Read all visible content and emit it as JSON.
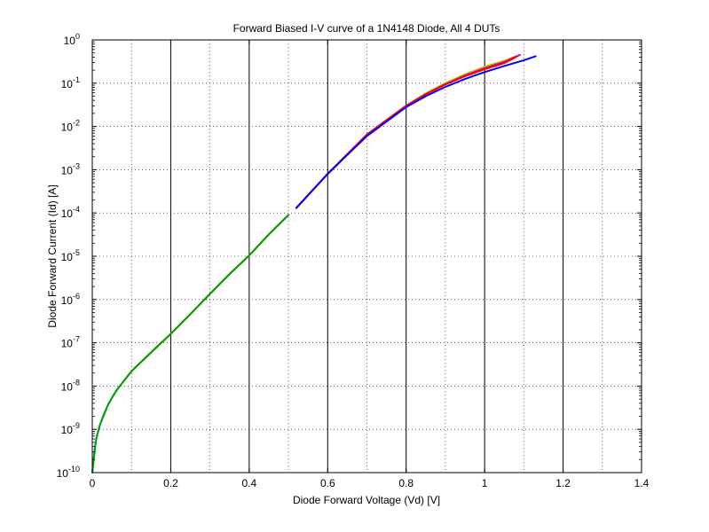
{
  "chart_data": {
    "type": "line",
    "title": "Forward Biased I-V curve of a 1N4148 Diode, All 4 DUTs",
    "xlabel": "Diode Forward Voltage (Vd) [V]",
    "ylabel": "Diode Forward Current (Id) [A]",
    "xlim": [
      0,
      1.4
    ],
    "ylim": [
      1e-10,
      1
    ],
    "y_scale": "log",
    "grid": "dotted",
    "x_ticks": [
      "0",
      "0.2",
      "0.4",
      "0.6",
      "0.8",
      "1",
      "1.2",
      "1.4"
    ],
    "x_tick_values": [
      0,
      0.2,
      0.4,
      0.6,
      0.8,
      1.0,
      1.2,
      1.4
    ],
    "y_tick_exponents": [
      -10,
      -9,
      -8,
      -7,
      -6,
      -5,
      -4,
      -3,
      -2,
      -1,
      0
    ],
    "y_tick_base": "10",
    "x_bold_gridlines": [
      0.2,
      0.4,
      0.6,
      0.8,
      1.0,
      1.2
    ],
    "series": [
      {
        "color": "#00bfbf",
        "x": [
          0.0,
          0.005,
          0.01,
          0.015,
          0.02,
          0.03,
          0.04,
          0.05,
          0.06,
          0.07,
          0.08,
          0.1,
          0.15,
          0.2,
          0.25,
          0.3,
          0.35,
          0.4,
          0.45,
          0.5
        ],
        "y": [
          1e-10,
          3e-10,
          6e-10,
          9e-10,
          1.3e-09,
          2.3e-09,
          3.7e-09,
          5.4e-09,
          7.5e-09,
          1e-08,
          1.3e-08,
          2.2e-08,
          6e-08,
          1.6e-07,
          4.6e-07,
          1.35e-06,
          3.9e-06,
          1.05e-05,
          3.2e-05,
          9e-05
        ]
      },
      {
        "color": "#ff0000",
        "x": [
          0.08,
          0.1,
          0.15,
          0.2,
          0.25,
          0.3,
          0.35,
          0.4,
          0.45,
          0.5
        ],
        "y": [
          1.3e-08,
          2.2e-08,
          6e-08,
          1.6e-07,
          4.6e-07,
          1.35e-06,
          3.9e-06,
          1.05e-05,
          3.2e-05,
          9e-05
        ]
      },
      {
        "color": "#00a000",
        "x": [
          0.0,
          0.01,
          0.02,
          0.04,
          0.06,
          0.08,
          0.1,
          0.15,
          0.2,
          0.25,
          0.3,
          0.35,
          0.4,
          0.45,
          0.5
        ],
        "y": [
          1e-10,
          6e-10,
          1.3e-09,
          3.7e-09,
          7.5e-09,
          1.3e-08,
          2.2e-08,
          6e-08,
          1.6e-07,
          4.6e-07,
          1.35e-06,
          3.9e-06,
          1.05e-05,
          3.2e-05,
          9e-05
        ]
      },
      {
        "color": "#bfbf00",
        "x": [
          0.52,
          0.6,
          0.7,
          0.8,
          0.85,
          0.9,
          0.95,
          1.0,
          1.05,
          1.08
        ],
        "y": [
          0.00013,
          0.0008,
          0.0065,
          0.03,
          0.058,
          0.1,
          0.16,
          0.24,
          0.33,
          0.42
        ]
      },
      {
        "color": "#bf00bf",
        "x": [
          0.52,
          0.6,
          0.7,
          0.8,
          0.85,
          0.9,
          0.95,
          1.0,
          1.05,
          1.09
        ],
        "y": [
          0.00013,
          0.0008,
          0.0065,
          0.03,
          0.056,
          0.095,
          0.15,
          0.22,
          0.31,
          0.45
        ]
      },
      {
        "color": "#ff0000",
        "x": [
          0.52,
          0.6,
          0.7,
          0.8,
          0.85,
          0.9,
          0.95,
          1.0,
          1.05,
          1.08
        ],
        "y": [
          0.00013,
          0.0008,
          0.0065,
          0.03,
          0.055,
          0.093,
          0.145,
          0.21,
          0.29,
          0.4
        ]
      },
      {
        "color": "#0000ff",
        "x": [
          0.52,
          0.6,
          0.7,
          0.8,
          0.85,
          0.9,
          0.95,
          1.0,
          1.05,
          1.1,
          1.13
        ],
        "y": [
          0.00013,
          0.0008,
          0.006,
          0.028,
          0.05,
          0.082,
          0.125,
          0.18,
          0.25,
          0.34,
          0.42
        ]
      }
    ]
  }
}
